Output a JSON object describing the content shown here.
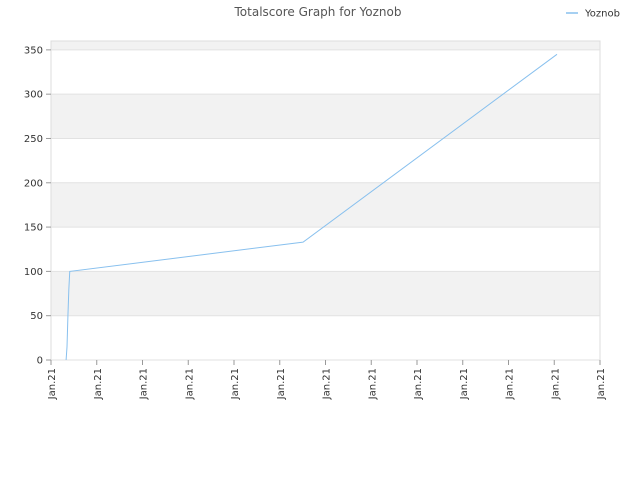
{
  "chart_data": {
    "type": "line",
    "title": "Totalscore Graph for Yoznob",
    "legend": "top-right",
    "grid": true,
    "x": [
      0.33,
      0.35,
      0.37,
      0.39,
      0.41,
      5.51,
      11.06
    ],
    "series": [
      {
        "name": "Yoznob",
        "color": "#88c0ee",
        "values": [
          0,
          15,
          50,
          80,
          100,
          133,
          345
        ]
      }
    ],
    "xlim": [
      0,
      12
    ],
    "xticks": [
      {
        "value": 0,
        "label": "Jan.21"
      },
      {
        "value": 1,
        "label": "Jan.21"
      },
      {
        "value": 2,
        "label": "Jan.21"
      },
      {
        "value": 3,
        "label": "Jan.21"
      },
      {
        "value": 4,
        "label": "Jan.21"
      },
      {
        "value": 5,
        "label": "Jan.21"
      },
      {
        "value": 6,
        "label": "Jan.21"
      },
      {
        "value": 7,
        "label": "Jan.21"
      },
      {
        "value": 8,
        "label": "Jan.21"
      },
      {
        "value": 9,
        "label": "Jan.21"
      },
      {
        "value": 10,
        "label": "Jan.21"
      },
      {
        "value": 11,
        "label": "Jan.21"
      },
      {
        "value": 12,
        "label": "Jan.21"
      }
    ],
    "ylim": [
      0,
      360
    ],
    "yticks": [
      0,
      50,
      100,
      150,
      200,
      250,
      300,
      350
    ]
  }
}
